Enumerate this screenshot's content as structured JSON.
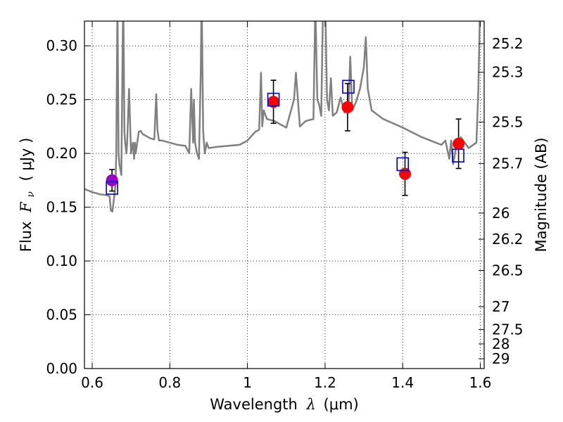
{
  "chart_data": {
    "type": "scatter",
    "title": "",
    "xlabel": {
      "prefix": "Wavelength",
      "symbol": "λ",
      "unit": "(μm)"
    },
    "ylabel": {
      "prefix": "Flux",
      "symbol": "F",
      "sub": "ν",
      "unit": "( μJy )"
    },
    "ylabel_right": "Magnitude (AB)",
    "xlim": [
      0.58,
      1.61
    ],
    "ylim": [
      0.0,
      0.323
    ],
    "grid": true,
    "x_ticks": [
      {
        "value": 0.6,
        "label": "0.6"
      },
      {
        "value": 0.8,
        "label": "0.8"
      },
      {
        "value": 1.0,
        "label": "1"
      },
      {
        "value": 1.2,
        "label": "1.2"
      },
      {
        "value": 1.4,
        "label": "1.4"
      },
      {
        "value": 1.6,
        "label": "1.6"
      }
    ],
    "y_ticks": [
      {
        "value": 0.0,
        "label": "0.00"
      },
      {
        "value": 0.05,
        "label": "0.05"
      },
      {
        "value": 0.1,
        "label": "0.10"
      },
      {
        "value": 0.15,
        "label": "0.15"
      },
      {
        "value": 0.2,
        "label": "0.20"
      },
      {
        "value": 0.25,
        "label": "0.25"
      },
      {
        "value": 0.3,
        "label": "0.30"
      }
    ],
    "right_ticks": [
      {
        "value": 25.2,
        "label": "25.2"
      },
      {
        "value": 25.3,
        "label": "25.3"
      },
      {
        "value": 25.5,
        "label": "25.5"
      },
      {
        "value": 25.7,
        "label": "25.7"
      },
      {
        "value": 26.0,
        "label": "26"
      },
      {
        "value": 26.2,
        "label": "26.2"
      },
      {
        "value": 26.5,
        "label": "26.5"
      },
      {
        "value": 27.0,
        "label": "27"
      },
      {
        "value": 27.5,
        "label": "27.5"
      },
      {
        "value": 28.0,
        "label": "28"
      },
      {
        "value": 29.0,
        "label": "29"
      }
    ],
    "ab_zero_point_ujy": 3631000000,
    "colors": {
      "model": "#808080",
      "observed": "#ff0000",
      "observed_first": "#9900cc",
      "model_photometry": "#0000cc",
      "errorbar": "#000000",
      "grid": "#000000"
    },
    "model_spectrum": {
      "x": [
        0.58,
        0.6,
        0.62,
        0.64,
        0.645,
        0.648,
        0.652,
        0.655,
        0.66,
        0.662,
        0.665,
        0.668,
        0.67,
        0.675,
        0.68,
        0.683,
        0.685,
        0.688,
        0.69,
        0.695,
        0.7,
        0.705,
        0.708,
        0.71,
        0.712,
        0.716,
        0.72,
        0.725,
        0.73,
        0.74,
        0.75,
        0.76,
        0.765,
        0.768,
        0.772,
        0.78,
        0.8,
        0.82,
        0.84,
        0.85,
        0.855,
        0.86,
        0.862,
        0.865,
        0.87,
        0.875,
        0.88,
        0.882,
        0.886,
        0.89,
        0.895,
        0.9,
        0.92,
        0.95,
        0.98,
        1.0,
        1.02,
        1.03,
        1.035,
        1.038,
        1.042,
        1.05,
        1.07,
        1.09,
        1.1,
        1.12,
        1.125,
        1.13,
        1.135,
        1.15,
        1.17,
        1.175,
        1.18,
        1.185,
        1.19,
        1.195,
        1.2,
        1.205,
        1.21,
        1.215,
        1.22,
        1.23,
        1.24,
        1.25,
        1.26,
        1.265,
        1.27,
        1.28,
        1.29,
        1.3,
        1.305,
        1.31,
        1.32,
        1.35,
        1.4,
        1.45,
        1.5,
        1.51,
        1.52,
        1.525,
        1.53,
        1.535,
        1.54,
        1.55,
        1.57,
        1.59,
        1.595,
        1.6
      ],
      "y": [
        0.167,
        0.164,
        0.162,
        0.161,
        0.16,
        0.147,
        0.146,
        0.155,
        0.17,
        0.2,
        0.34,
        0.2,
        0.19,
        0.18,
        0.35,
        0.22,
        0.21,
        0.2,
        0.21,
        0.26,
        0.2,
        0.21,
        0.195,
        0.21,
        0.2,
        0.21,
        0.22,
        0.221,
        0.218,
        0.216,
        0.214,
        0.213,
        0.255,
        0.222,
        0.212,
        0.212,
        0.21,
        0.208,
        0.207,
        0.2,
        0.26,
        0.21,
        0.25,
        0.21,
        0.2,
        0.195,
        0.28,
        0.35,
        0.22,
        0.2,
        0.21,
        0.205,
        0.206,
        0.207,
        0.208,
        0.212,
        0.22,
        0.222,
        0.275,
        0.225,
        0.24,
        0.232,
        0.23,
        0.226,
        0.224,
        0.25,
        0.275,
        0.25,
        0.225,
        0.23,
        0.232,
        0.34,
        0.25,
        0.245,
        0.235,
        0.34,
        0.35,
        0.25,
        0.24,
        0.27,
        0.235,
        0.238,
        0.252,
        0.238,
        0.24,
        0.29,
        0.24,
        0.248,
        0.26,
        0.28,
        0.308,
        0.26,
        0.24,
        0.232,
        0.224,
        0.215,
        0.208,
        0.212,
        0.195,
        0.212,
        0.19,
        0.2,
        0.21,
        0.215,
        0.205,
        0.21,
        0.26,
        0.35
      ]
    },
    "observed": {
      "x": [
        0.651,
        1.067,
        1.258,
        1.406,
        1.544
      ],
      "y": [
        0.175,
        0.248,
        0.243,
        0.181,
        0.209
      ],
      "yerr": [
        0.01,
        0.02,
        0.022,
        0.02,
        0.023
      ]
    },
    "model_photometry": {
      "x": [
        0.651,
        1.067,
        1.26,
        1.4,
        1.543
      ],
      "y": [
        0.168,
        0.25,
        0.262,
        0.19,
        0.198
      ]
    }
  }
}
